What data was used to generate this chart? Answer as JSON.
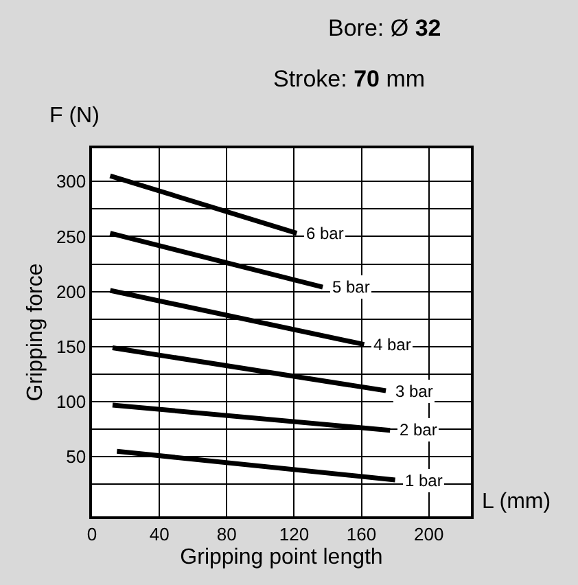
{
  "chart_data": {
    "type": "line",
    "title": "Bore: Ø 32",
    "subtitle": "Stroke: 70 mm",
    "xlabel": "Gripping point length",
    "ylabel": "Gripping force",
    "annotations": [
      "F (N)",
      "L (mm)"
    ],
    "xlim": [
      0,
      225
    ],
    "ylim": [
      -4,
      330
    ],
    "xticks": [
      0,
      40,
      80,
      120,
      160,
      200
    ],
    "yticks": [
      {
        "value": 25,
        "label": null
      },
      50,
      {
        "value": 75,
        "label": null
      },
      100,
      {
        "value": 125,
        "label": null
      },
      150,
      {
        "value": 175,
        "label": null
      },
      200,
      {
        "value": 225,
        "label": null
      },
      250,
      {
        "value": 275,
        "label": null
      },
      300
    ],
    "grid": true,
    "legend": false,
    "marker": "none",
    "line_style": "solid",
    "series": [
      {
        "name": "6 bar",
        "color": "#000000",
        "x": [
          10.8,
          121.6
        ],
        "values": [
          305,
          253
        ]
      },
      {
        "name": "5 bar",
        "color": "#000000",
        "x": [
          10.8,
          137
        ],
        "values": [
          253,
          204
        ]
      },
      {
        "name": "4 bar",
        "color": "#000000",
        "x": [
          10.8,
          161.6
        ],
        "values": [
          201,
          152
        ]
      },
      {
        "name": "3 bar",
        "color": "#000000",
        "x": [
          12.2,
          174.5
        ],
        "values": [
          149,
          110
        ]
      },
      {
        "name": "2 bar",
        "color": "#000000",
        "x": [
          12.2,
          177
        ],
        "values": [
          97,
          74
        ]
      },
      {
        "name": "1 bar",
        "color": "#000000",
        "x": [
          14.8,
          180
        ],
        "values": [
          55,
          29
        ]
      }
    ]
  }
}
